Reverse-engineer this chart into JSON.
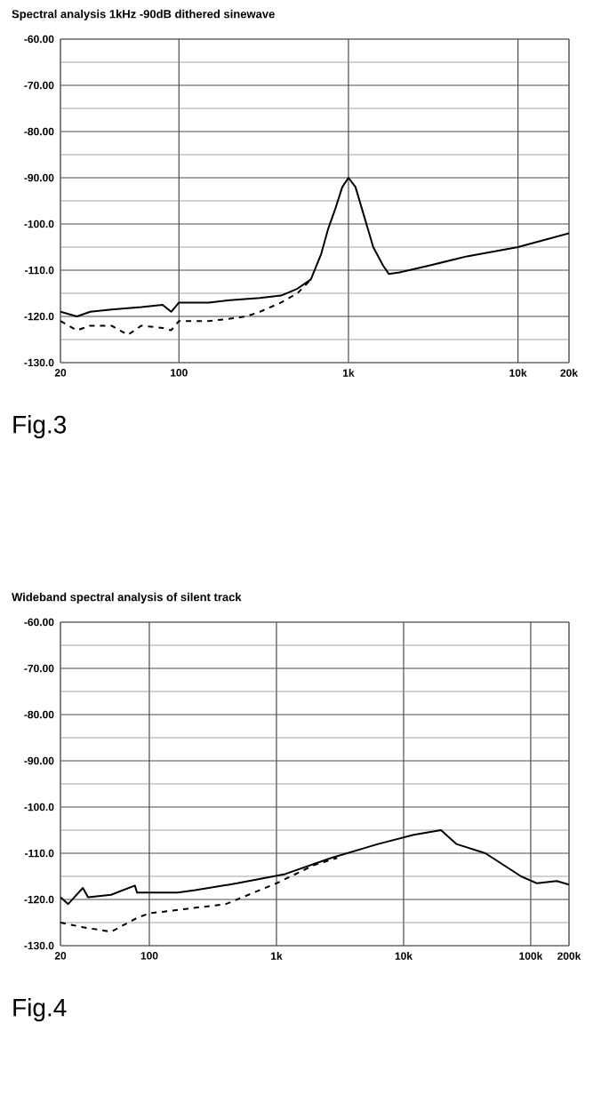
{
  "chart_data": [
    {
      "type": "line",
      "title": "Spectral analysis 1kHz -90dB dithered sinewave",
      "log": "x",
      "grid": true,
      "xlim": [
        20,
        20000
      ],
      "ylim": [
        -130,
        -60
      ],
      "xticks": [
        20,
        100,
        {
          "value": 1000,
          "label": "1k"
        },
        {
          "value": 10000,
          "label": "10k"
        },
        {
          "value": 20000,
          "label": "20k"
        }
      ],
      "yticks": [
        {
          "value": -130,
          "label": "-130.0"
        },
        {
          "value": -120,
          "label": "-120.0"
        },
        {
          "value": -110,
          "label": "-110.0"
        },
        {
          "value": -100,
          "label": "-100.0"
        },
        {
          "value": -90,
          "label": "-90.00"
        },
        {
          "value": -80,
          "label": "-80.00"
        },
        {
          "value": -70,
          "label": "-70.00"
        },
        {
          "value": -60,
          "label": "-60.00"
        }
      ],
      "series": [
        {
          "color": "#000000",
          "line_style": "solid",
          "x": [
            20,
            25,
            30,
            40,
            60,
            80,
            90,
            100,
            150,
            200,
            300,
            400,
            500,
            600,
            690,
            760,
            840,
            920,
            1000,
            1100,
            1230,
            1400,
            1600,
            1730,
            2000,
            3000,
            5000,
            10000,
            20000
          ],
          "values": [
            -119,
            -120,
            -119,
            -118.5,
            -118,
            -117.5,
            -119,
            -117,
            -117,
            -116.5,
            -116,
            -115.5,
            -114,
            -112,
            -106.5,
            -101,
            -96.5,
            -92,
            -90,
            -92,
            -98,
            -105,
            -109,
            -110.8,
            -110.5,
            -109,
            -107,
            -105,
            -102
          ]
        },
        {
          "color": "#000000",
          "line_style": "dashed",
          "x": [
            20,
            25,
            30,
            40,
            50,
            60,
            80,
            90,
            100,
            150,
            200,
            250,
            300,
            400,
            500,
            600
          ],
          "values": [
            -121,
            -123,
            -122,
            -122,
            -124,
            -122,
            -122.5,
            -123,
            -121,
            -121,
            -120.5,
            -120,
            -119,
            -117,
            -115,
            -112
          ]
        }
      ],
      "annotations": [
        "Fig.3"
      ]
    },
    {
      "type": "line",
      "title": "Wideband spectral analysis of silent track",
      "log": "x",
      "grid": true,
      "xlim": [
        20,
        200000
      ],
      "ylim": [
        -130,
        -60
      ],
      "xticks": [
        20,
        100,
        {
          "value": 1000,
          "label": "1k"
        },
        {
          "value": 10000,
          "label": "10k"
        },
        {
          "value": 100000,
          "label": "100k"
        },
        {
          "value": 200000,
          "label": "200k"
        }
      ],
      "yticks": [
        {
          "value": -130,
          "label": "-130.0"
        },
        {
          "value": -120,
          "label": "-120.0"
        },
        {
          "value": -110,
          "label": "-110.0"
        },
        {
          "value": -100,
          "label": "-100.0"
        },
        {
          "value": -90,
          "label": "-90.00"
        },
        {
          "value": -80,
          "label": "-80.00"
        },
        {
          "value": -70,
          "label": "-70.00"
        },
        {
          "value": -60,
          "label": "-60.00"
        }
      ],
      "series": [
        {
          "color": "#000000",
          "line_style": "solid",
          "x": [
            20,
            23,
            30,
            33,
            50,
            77,
            80,
            167,
            230,
            490,
            1170,
            2700,
            6300,
            12000,
            19700,
            26000,
            44000,
            84000,
            112000,
            160000,
            200000
          ],
          "values": [
            -119.5,
            -121,
            -117.5,
            -119.5,
            -119,
            -117,
            -118.5,
            -118.5,
            -118,
            -116.5,
            -114.5,
            -111,
            -108,
            -106,
            -105,
            -108,
            -110,
            -115,
            -116.5,
            -116,
            -116.8
          ]
        },
        {
          "color": "#000000",
          "line_style": "dashed",
          "x": [
            20,
            30,
            50,
            80,
            100,
            200,
            400,
            1000,
            2000,
            3000
          ],
          "values": [
            -125,
            -126,
            -127,
            -124,
            -123,
            -122,
            -121,
            -116.5,
            -112.5,
            -111
          ]
        }
      ],
      "annotations": [
        "Fig.4"
      ]
    }
  ]
}
